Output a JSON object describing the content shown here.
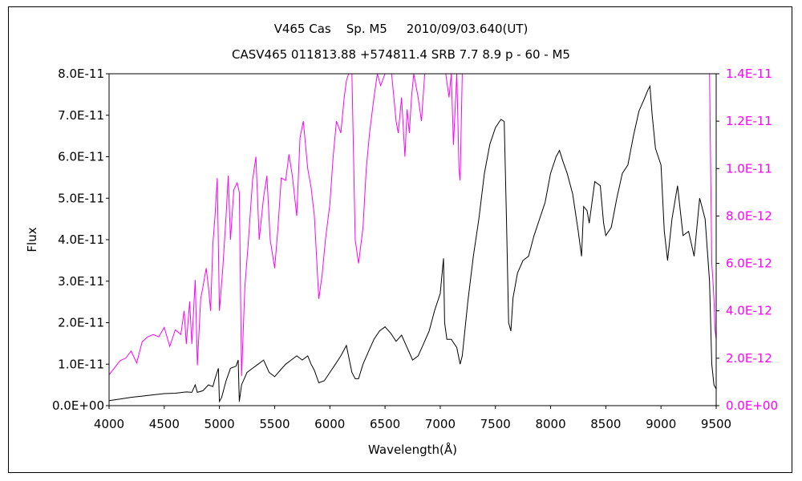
{
  "chart_data": {
    "type": "line",
    "title_line1": "V465 Cas    Sp. M5     2010/09/03.640(UT)",
    "title_line2": "CASV465 011813.88 +574811.4 SRB 7.7 8.9 p - 60 - M5",
    "xlabel": "Wavelength(Å)",
    "ylabel": "Flux",
    "xlim": [
      4000,
      9500
    ],
    "x_ticks": [
      "4000",
      "4500",
      "5000",
      "5500",
      "6000",
      "6500",
      "7000",
      "7500",
      "8000",
      "8500",
      "9000",
      "9500"
    ],
    "y_left_lim": [
      0,
      8e-11
    ],
    "y_left_ticks": [
      "0.0E+00",
      "1.0E-11",
      "2.0E-11",
      "3.0E-11",
      "4.0E-11",
      "5.0E-11",
      "6.0E-11",
      "7.0E-11",
      "8.0E-11"
    ],
    "y_right_lim": [
      0,
      1.4e-11
    ],
    "y_right_ticks": [
      "0.0E+00",
      "2.0E-12",
      "4.0E-12",
      "6.0E-12",
      "8.0E-12",
      "1.0E-11",
      "1.2E-11",
      "1.4E-11"
    ],
    "grid": false,
    "colors": {
      "left_axis": "#000000",
      "right_axis": "#ff00ff"
    },
    "series": [
      {
        "axis": "left",
        "color": "#000000",
        "x": [
          4000,
          4100,
          4200,
          4300,
          4400,
          4500,
          4600,
          4700,
          4750,
          4780,
          4800,
          4850,
          4900,
          4940,
          4960,
          4990,
          5000,
          5020,
          5060,
          5100,
          5150,
          5170,
          5180,
          5200,
          5250,
          5300,
          5350,
          5400,
          5450,
          5500,
          5550,
          5600,
          5650,
          5700,
          5750,
          5800,
          5830,
          5860,
          5900,
          5950,
          6000,
          6050,
          6100,
          6150,
          6200,
          6230,
          6260,
          6300,
          6350,
          6400,
          6450,
          6500,
          6550,
          6600,
          6650,
          6700,
          6750,
          6800,
          6850,
          6900,
          6950,
          7000,
          7030,
          7040,
          7060,
          7100,
          7150,
          7180,
          7200,
          7250,
          7300,
          7350,
          7400,
          7450,
          7500,
          7550,
          7580,
          7600,
          7620,
          7640,
          7660,
          7700,
          7750,
          7800,
          7850,
          7900,
          7950,
          8000,
          8050,
          8080,
          8110,
          8150,
          8200,
          8250,
          8280,
          8300,
          8330,
          8350,
          8400,
          8450,
          8480,
          8500,
          8550,
          8600,
          8650,
          8700,
          8750,
          8800,
          8850,
          8880,
          8900,
          8920,
          8950,
          9000,
          9030,
          9060,
          9100,
          9150,
          9200,
          9250,
          9300,
          9350,
          9400,
          9440,
          9460,
          9480,
          9500
        ],
        "values": [
          1.2e-12,
          1.6e-12,
          2e-12,
          2.3e-12,
          2.6e-12,
          2.9e-12,
          3e-12,
          3.3e-12,
          3.2e-12,
          5e-12,
          3.2e-12,
          3.6e-12,
          5e-12,
          4.6e-12,
          6.5e-12,
          9e-12,
          1e-12,
          2e-12,
          6e-12,
          9e-12,
          9.5e-12,
          1.1e-11,
          1e-12,
          5e-12,
          8e-12,
          9e-12,
          1e-11,
          1.1e-11,
          8e-12,
          7e-12,
          8.5e-12,
          1e-11,
          1.1e-11,
          1.2e-11,
          1.1e-11,
          1.2e-11,
          1e-11,
          8.5e-12,
          5.5e-12,
          6e-12,
          8e-12,
          1e-11,
          1.2e-11,
          1.45e-11,
          8e-12,
          6.5e-12,
          6.5e-12,
          1e-11,
          1.3e-11,
          1.6e-11,
          1.8e-11,
          1.9e-11,
          1.75e-11,
          1.55e-11,
          1.7e-11,
          1.4e-11,
          1.1e-11,
          1.2e-11,
          1.5e-11,
          1.8e-11,
          2.3e-11,
          2.7e-11,
          3.55e-11,
          2e-11,
          1.6e-11,
          1.6e-11,
          1.4e-11,
          1e-11,
          1.2e-11,
          2.5e-11,
          3.6e-11,
          4.5e-11,
          5.6e-11,
          6.3e-11,
          6.7e-11,
          6.9e-11,
          6.85e-11,
          4.5e-11,
          2e-11,
          1.8e-11,
          2.6e-11,
          3.2e-11,
          3.5e-11,
          3.6e-11,
          4.1e-11,
          4.5e-11,
          4.9e-11,
          5.6e-11,
          6e-11,
          6.15e-11,
          5.9e-11,
          5.6e-11,
          5.1e-11,
          4.2e-11,
          3.6e-11,
          4.8e-11,
          4.7e-11,
          4.4e-11,
          5.4e-11,
          5.3e-11,
          4.4e-11,
          4.1e-11,
          4.3e-11,
          5e-11,
          5.6e-11,
          5.8e-11,
          6.5e-11,
          7.1e-11,
          7.4e-11,
          7.6e-11,
          7.7e-11,
          7e-11,
          6.2e-11,
          5.8e-11,
          4.2e-11,
          3.5e-11,
          4.5e-11,
          5.3e-11,
          4.1e-11,
          4.2e-11,
          3.6e-11,
          5e-11,
          4.5e-11,
          3e-11,
          1e-11,
          5e-12,
          4e-12
        ]
      },
      {
        "axis": "right",
        "color": "#ff00ff",
        "x": [
          4000,
          4050,
          4100,
          4150,
          4200,
          4250,
          4300,
          4350,
          4400,
          4450,
          4500,
          4550,
          4600,
          4650,
          4680,
          4700,
          4730,
          4750,
          4780,
          4800,
          4830,
          4850,
          4880,
          4900,
          4920,
          4940,
          4960,
          4980,
          5000,
          5030,
          5060,
          5080,
          5100,
          5130,
          5160,
          5180,
          5200,
          5230,
          5260,
          5300,
          5330,
          5360,
          5400,
          5430,
          5460,
          5500,
          5530,
          5560,
          5600,
          5630,
          5660,
          5700,
          5730,
          5760,
          5800,
          5830,
          5860,
          5900,
          5930,
          5960,
          6000,
          6030,
          6060,
          6100,
          6130,
          6150,
          6170,
          6200,
          6230,
          6260,
          6300,
          6330,
          6360,
          6400,
          6430,
          6460,
          6500,
          6530,
          6560,
          6600,
          6620,
          6650,
          6680,
          6700,
          6720,
          6740,
          6760,
          6800,
          6830,
          6860,
          6900,
          6950,
          7000,
          7050,
          7080,
          7100,
          7120,
          7150,
          7170,
          7180,
          7200
        ],
        "values": [
          1.3e-12,
          1.6e-12,
          1.9e-12,
          2e-12,
          2.3e-12,
          1.8e-12,
          2.7e-12,
          2.9e-12,
          3e-12,
          2.9e-12,
          3.3e-12,
          2.5e-12,
          3.2e-12,
          3e-12,
          4e-12,
          2.6e-12,
          4.4e-12,
          2.6e-12,
          5.3e-12,
          1.7e-12,
          4.5e-12,
          5e-12,
          5.8e-12,
          5e-12,
          4e-12,
          6.8e-12,
          8e-12,
          9.6e-12,
          4e-12,
          5.8e-12,
          8e-12,
          9.7e-12,
          7e-12,
          9.1e-12,
          9.4e-12,
          9e-12,
          1.25e-12,
          5e-12,
          6.8e-12,
          9.5e-12,
          1.05e-11,
          7e-12,
          8.8e-12,
          9.7e-12,
          7e-12,
          5.8e-12,
          7.5e-12,
          9.6e-12,
          9.5e-12,
          1.06e-11,
          9.7e-12,
          8e-12,
          1.13e-11,
          1.2e-11,
          1e-11,
          9.2e-12,
          8e-12,
          4.5e-12,
          5.5e-12,
          7e-12,
          8.5e-12,
          1.05e-11,
          1.2e-11,
          1.15e-11,
          1.3e-11,
          1.37e-11,
          1.4e-11,
          1.4e-11,
          7e-12,
          6e-12,
          7.5e-12,
          1e-11,
          1.15e-11,
          1.3e-11,
          1.4e-11,
          1.35e-11,
          1.4e-11,
          1.4e-11,
          1.4e-11,
          1.2e-11,
          1.15e-11,
          1.3e-11,
          1.05e-11,
          1.25e-11,
          1.15e-11,
          1.3e-11,
          1.4e-11,
          1.3e-11,
          1.2e-11,
          1.4e-11,
          1.4e-11,
          1.4e-11,
          1.4e-11,
          1.4e-11,
          1.3e-11,
          1.4e-11,
          1.1e-11,
          1.4e-11,
          1e-11,
          9.5e-12,
          1.4e-11
        ]
      },
      {
        "axis": "right",
        "color": "#ff00ff",
        "x": [
          9440,
          9450,
          9460,
          9470,
          9480,
          9490,
          9500
        ],
        "values": [
          1.4e-11,
          1e-11,
          6e-12,
          5.3e-12,
          4.5e-12,
          3.2e-12,
          2.8e-12
        ]
      }
    ]
  }
}
